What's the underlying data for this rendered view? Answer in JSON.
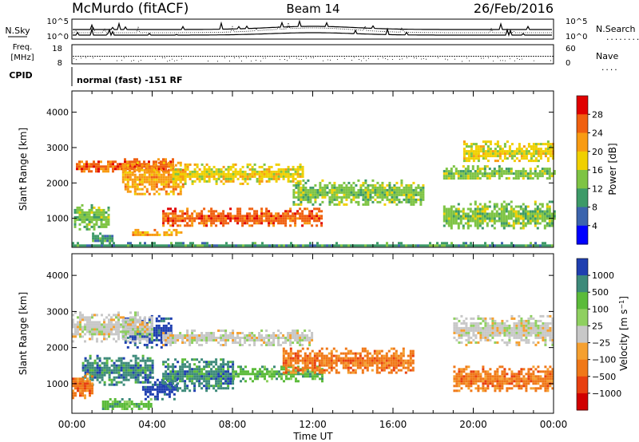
{
  "header": {
    "station": "McMurdo (fitACF)",
    "beam": "Beam 14",
    "date": "26/Feb/2016"
  },
  "summary": {
    "nsky_label": "N.Sky",
    "nsearch_label": "N.Search",
    "nsearch_dots": ".........",
    "noise_ticks": [
      "10^5",
      "10^0"
    ],
    "freq_label": "Freq.",
    "freq_unit": "[MHz]",
    "freq_ticks": [
      "18",
      "8"
    ],
    "nave_label": "Nave",
    "nave_dots": "....",
    "nave_ticks": [
      "60",
      "0"
    ],
    "cpid_label": "CPID",
    "cpid_value": "normal (fast) -151 RF"
  },
  "x_axis": {
    "label": "Time UT",
    "ticks": [
      "00:00",
      "04:00",
      "08:00",
      "12:00",
      "16:00",
      "20:00",
      "00:00"
    ]
  },
  "chart_data": [
    {
      "type": "heatmap",
      "title": "",
      "xlabel": "",
      "ylabel": "Slant Range [km]",
      "y_ticks": [
        1000,
        2000,
        3000,
        4000
      ],
      "ylim": [
        180,
        4600
      ],
      "xlim_hours": [
        0,
        24
      ],
      "colorbar": {
        "label": "Power [dB]",
        "ticks": [
          4,
          8,
          12,
          16,
          20,
          24,
          28
        ],
        "colors": [
          "#0000ff",
          "#3c64ad",
          "#3d9a68",
          "#7ec444",
          "#f0d000",
          "#f89b12",
          "#f06010",
          "#e00000"
        ]
      },
      "features": [
        {
          "start_h": 0.2,
          "end_h": 5.0,
          "range_km": [
            2300,
            2700
          ],
          "level": 24
        },
        {
          "start_h": 2.5,
          "end_h": 5.5,
          "range_km": [
            1700,
            2600
          ],
          "level": 20
        },
        {
          "start_h": 0.1,
          "end_h": 1.8,
          "range_km": [
            700,
            1400
          ],
          "level": 12
        },
        {
          "start_h": 1.0,
          "end_h": 2.0,
          "range_km": [
            300,
            600
          ],
          "level": 8
        },
        {
          "start_h": 3.0,
          "end_h": 5.5,
          "range_km": [
            500,
            700
          ],
          "level": 20
        },
        {
          "start_h": 5.0,
          "end_h": 11.5,
          "range_km": [
            2000,
            2550
          ],
          "level": 16
        },
        {
          "start_h": 4.5,
          "end_h": 12.5,
          "range_km": [
            800,
            1300
          ],
          "level": 24
        },
        {
          "start_h": 11.0,
          "end_h": 17.5,
          "range_km": [
            1400,
            2100
          ],
          "level": 12
        },
        {
          "start_h": 18.5,
          "end_h": 24.0,
          "range_km": [
            2100,
            2500
          ],
          "level": 12
        },
        {
          "start_h": 19.5,
          "end_h": 24.0,
          "range_km": [
            2600,
            3200
          ],
          "level": 16
        },
        {
          "start_h": 18.5,
          "end_h": 24.0,
          "range_km": [
            700,
            1500
          ],
          "level": 12
        },
        {
          "start_h": 0.0,
          "end_h": 24.0,
          "range_km": [
            200,
            330
          ],
          "level": 8
        }
      ]
    },
    {
      "type": "heatmap",
      "title": "",
      "xlabel": "Time UT",
      "ylabel": "Slant Range [km]",
      "y_ticks": [
        1000,
        2000,
        3000,
        4000
      ],
      "ylim": [
        180,
        4600
      ],
      "xlim_hours": [
        0,
        24
      ],
      "colorbar": {
        "label": "Velocity [m s^-1]",
        "ticks": [
          1000,
          500,
          100,
          25,
          -25,
          -100,
          -500,
          -1000
        ],
        "colors": [
          "#1f3fb0",
          "#3d8a7a",
          "#5bbb3a",
          "#8fd060",
          "#c8c8c8",
          "#f5a030",
          "#f07818",
          "#e84010",
          "#d00000"
        ]
      },
      "features": [
        {
          "start_h": 2.5,
          "end_h": 5.0,
          "range_km": [
            2000,
            2900
          ],
          "level": 1000
        },
        {
          "start_h": 3.5,
          "end_h": 5.2,
          "range_km": [
            600,
            1200
          ],
          "level": 1000
        },
        {
          "start_h": 0.5,
          "end_h": 4.0,
          "range_km": [
            1000,
            1800
          ],
          "level": 500
        },
        {
          "start_h": 4.5,
          "end_h": 8.0,
          "range_km": [
            800,
            1700
          ],
          "level": 500
        },
        {
          "start_h": 0.0,
          "end_h": 4.0,
          "range_km": [
            2200,
            3000
          ],
          "level": -25
        },
        {
          "start_h": 4.5,
          "end_h": 12.0,
          "range_km": [
            2100,
            2500
          ],
          "level": -25
        },
        {
          "start_h": 8.0,
          "end_h": 12.5,
          "range_km": [
            1100,
            1500
          ],
          "level": 100
        },
        {
          "start_h": 10.5,
          "end_h": 17.0,
          "range_km": [
            1300,
            2000
          ],
          "level": -500
        },
        {
          "start_h": 19.0,
          "end_h": 24.0,
          "range_km": [
            2100,
            2900
          ],
          "level": -25
        },
        {
          "start_h": 19.0,
          "end_h": 24.0,
          "range_km": [
            800,
            1500
          ],
          "level": -500
        },
        {
          "start_h": 0.0,
          "end_h": 1.0,
          "range_km": [
            600,
            1300
          ],
          "level": -500
        },
        {
          "start_h": 1.5,
          "end_h": 4.0,
          "range_km": [
            300,
            600
          ],
          "level": 100
        }
      ]
    }
  ]
}
